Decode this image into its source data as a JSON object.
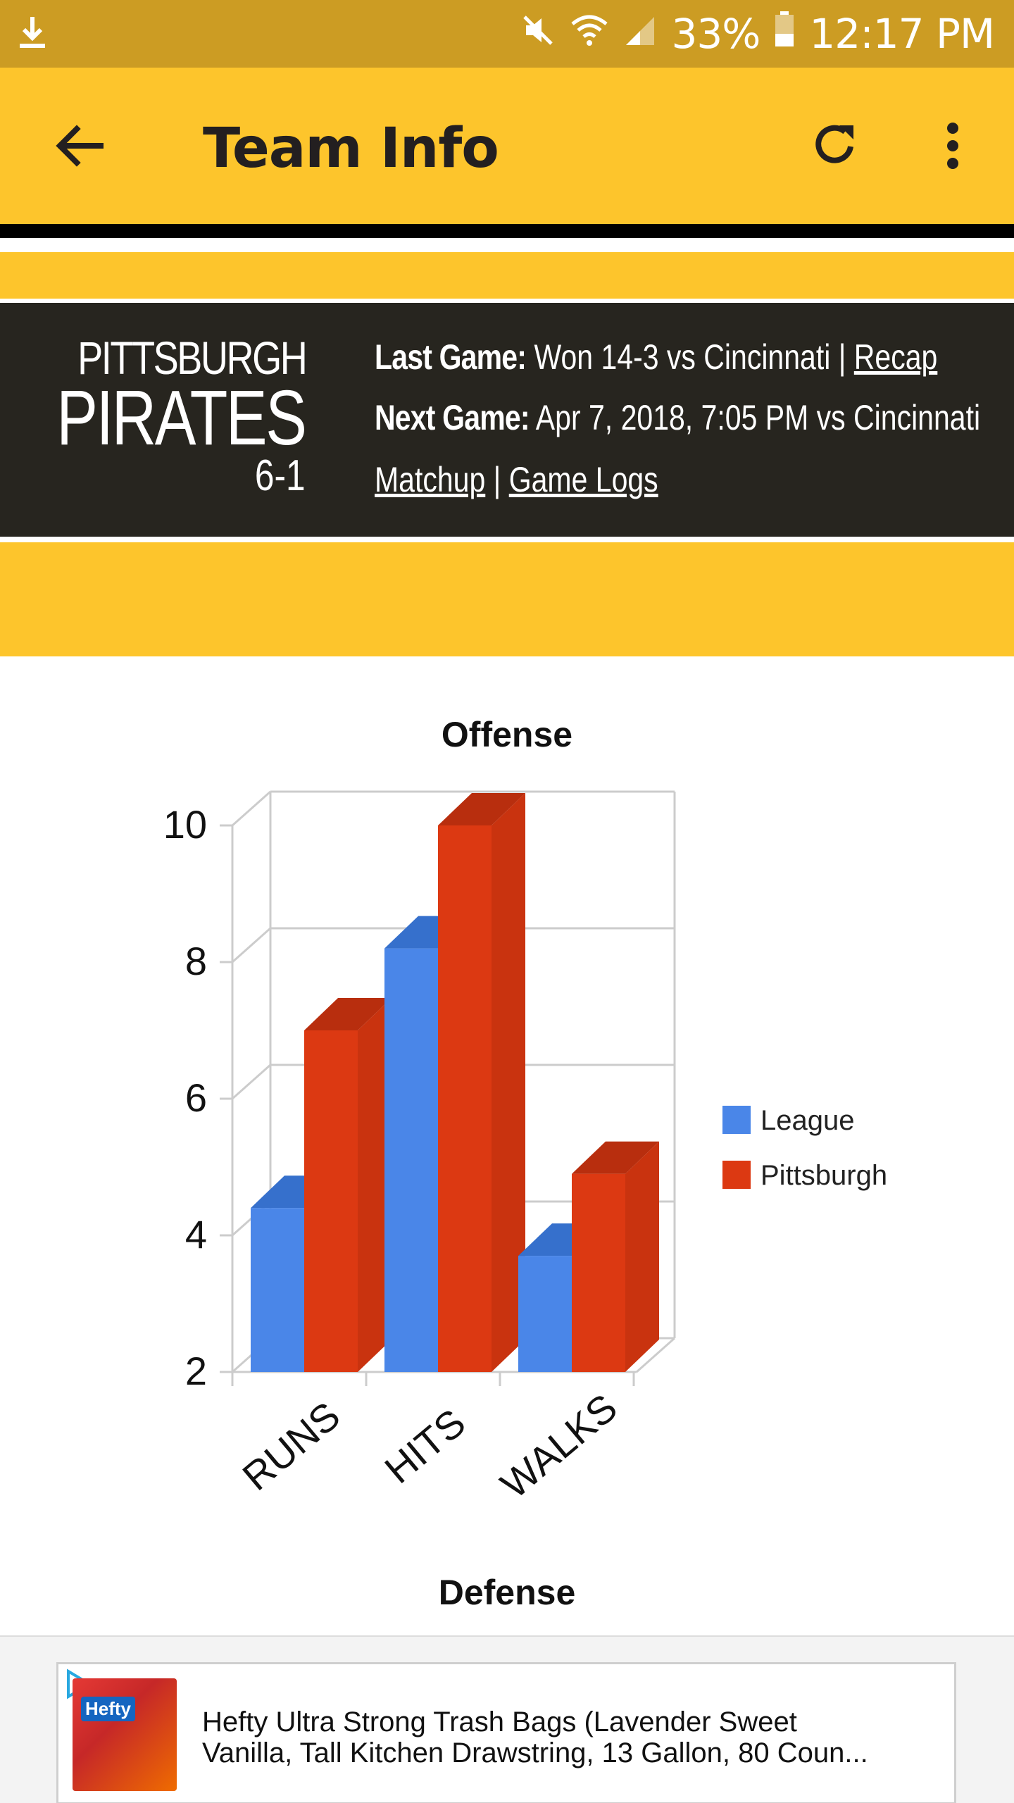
{
  "status_bar": {
    "battery_percent": "33%",
    "time": "12:17 PM",
    "icons": [
      "download-icon",
      "mute-icon",
      "wifi-icon",
      "signal-icon",
      "battery-icon"
    ]
  },
  "app_bar": {
    "title": "Team Info",
    "icons": [
      "back-arrow-icon",
      "refresh-icon",
      "more-vert-icon"
    ]
  },
  "team": {
    "city": "PITTSBURGH",
    "name": "PIRATES",
    "record": "6-1",
    "last_game_label": "Last Game:",
    "last_game_text": "Won 14-3 vs Cincinnati |",
    "recap_link": "Recap",
    "next_game_label": "Next Game:",
    "next_game_text": "Apr 7, 2018, 7:05 PM vs Cincinnati",
    "matchup_link": "Matchup",
    "separator": "|",
    "game_logs_link": "Game Logs"
  },
  "colors": {
    "status_bar": "#cc9c23",
    "brand_yellow": "#fdc52c",
    "panel_dark": "#27251f",
    "league_blue": "#4a86e8",
    "pittsburgh_red": "#dc3912"
  },
  "chart_data": {
    "type": "bar",
    "title": "Offense",
    "categories": [
      "RUNS",
      "HITS",
      "WALKS"
    ],
    "series": [
      {
        "name": "League",
        "values": [
          4.4,
          8.2,
          3.7
        ]
      },
      {
        "name": "Pittsburgh",
        "values": [
          7.0,
          10.0,
          4.9
        ]
      }
    ],
    "ylim": [
      2,
      10
    ],
    "yticks": [
      "2",
      "4",
      "6",
      "8",
      "10"
    ],
    "legend_position": "right",
    "grid": true,
    "style": "3d"
  },
  "defense_title": "Defense",
  "ad": {
    "brand": "Hefty",
    "line1": "Hefty Ultra Strong Trash Bags (Lavender Sweet",
    "line2": "Vanilla, Tall Kitchen Drawstring, 13 Gallon, 80 Coun..."
  }
}
